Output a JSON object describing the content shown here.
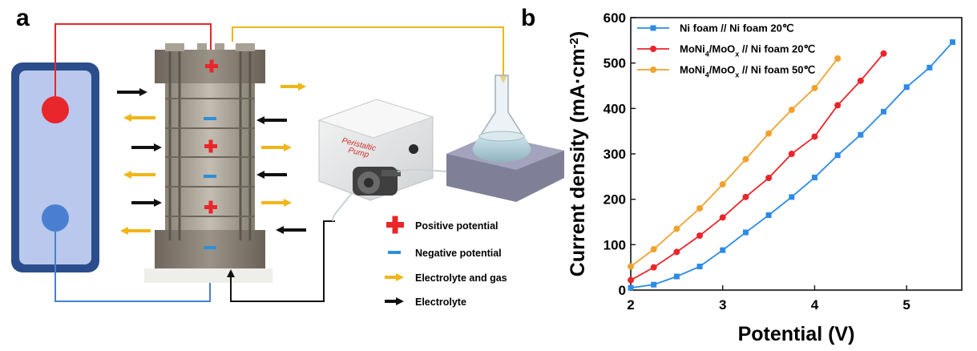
{
  "panel_a": {
    "label": "a",
    "pump_label_line1": "Peristaltic",
    "pump_label_line2": "Pump",
    "legend": [
      {
        "text": "Positive potential",
        "icon": "red-plus-icon",
        "color": "#e8262b"
      },
      {
        "text": "Negative potential",
        "icon": "blue-minus-icon",
        "color": "#2f8fd8"
      },
      {
        "text": "Electrolyte and gas",
        "icon": "yellow-arrow-icon",
        "color": "#f2b516"
      },
      {
        "text": "Electrolyte",
        "icon": "black-arrow-icon",
        "color": "#111111"
      }
    ],
    "colors": {
      "positive_wire": "#e8262b",
      "negative_wire": "#4a7fd0",
      "reservoir_frame": "#2b4d8c",
      "reservoir_fill": "#b9c8ec",
      "electrolyte_gas": "#f2b516",
      "electrolyte": "#111111"
    }
  },
  "panel_b": {
    "label": "b"
  },
  "chart_data": {
    "type": "line",
    "title": "",
    "xlabel": "Potential (V)",
    "ylabel": "Current density (mA·cm⁻²)",
    "xlim": [
      2,
      5.6
    ],
    "ylim": [
      0,
      600
    ],
    "xticks": [
      2,
      3,
      4,
      5
    ],
    "yticks": [
      0,
      100,
      200,
      300,
      400,
      500,
      600
    ],
    "legend_position": "top-left",
    "series": [
      {
        "name": "Ni foam // Ni foam 20℃",
        "name_parts": {
          "pre": "Ni foam // Ni foam 20℃",
          "sub": "",
          "post": ""
        },
        "color": "#2d8be6",
        "marker": "square",
        "x": [
          2.0,
          2.25,
          2.5,
          2.75,
          3.0,
          3.25,
          3.5,
          3.75,
          4.0,
          4.25,
          4.5,
          4.75,
          5.0,
          5.25,
          5.5
        ],
        "y": [
          5,
          12,
          30,
          52,
          88,
          127,
          165,
          205,
          248,
          297,
          342,
          393,
          447,
          490,
          546
        ]
      },
      {
        "name": "MoNi4/MoOx // Ni foam 20℃",
        "name_parts": {
          "pre": "MoNi",
          "sub": "4",
          "mid": "/MoO",
          "sub2": "x",
          "post": " // Ni foam 20℃"
        },
        "color": "#e8262b",
        "marker": "circle",
        "x": [
          2.0,
          2.25,
          2.5,
          2.75,
          3.0,
          3.25,
          3.5,
          3.75,
          4.0,
          4.25,
          4.5,
          4.75
        ],
        "y": [
          22,
          50,
          84,
          120,
          160,
          205,
          247,
          300,
          338,
          407,
          461,
          521
        ]
      },
      {
        "name": "MoNi4/MoOx // Ni foam 50℃",
        "name_parts": {
          "pre": "MoNi",
          "sub": "4",
          "mid": "/MoO",
          "sub2": "x",
          "post": " // Ni foam 50℃"
        },
        "color": "#f0a22e",
        "marker": "circle",
        "x": [
          2.0,
          2.25,
          2.5,
          2.75,
          3.0,
          3.25,
          3.5,
          3.75,
          4.0,
          4.25
        ],
        "y": [
          52,
          90,
          135,
          180,
          233,
          288,
          345,
          397,
          445,
          510
        ]
      }
    ]
  }
}
